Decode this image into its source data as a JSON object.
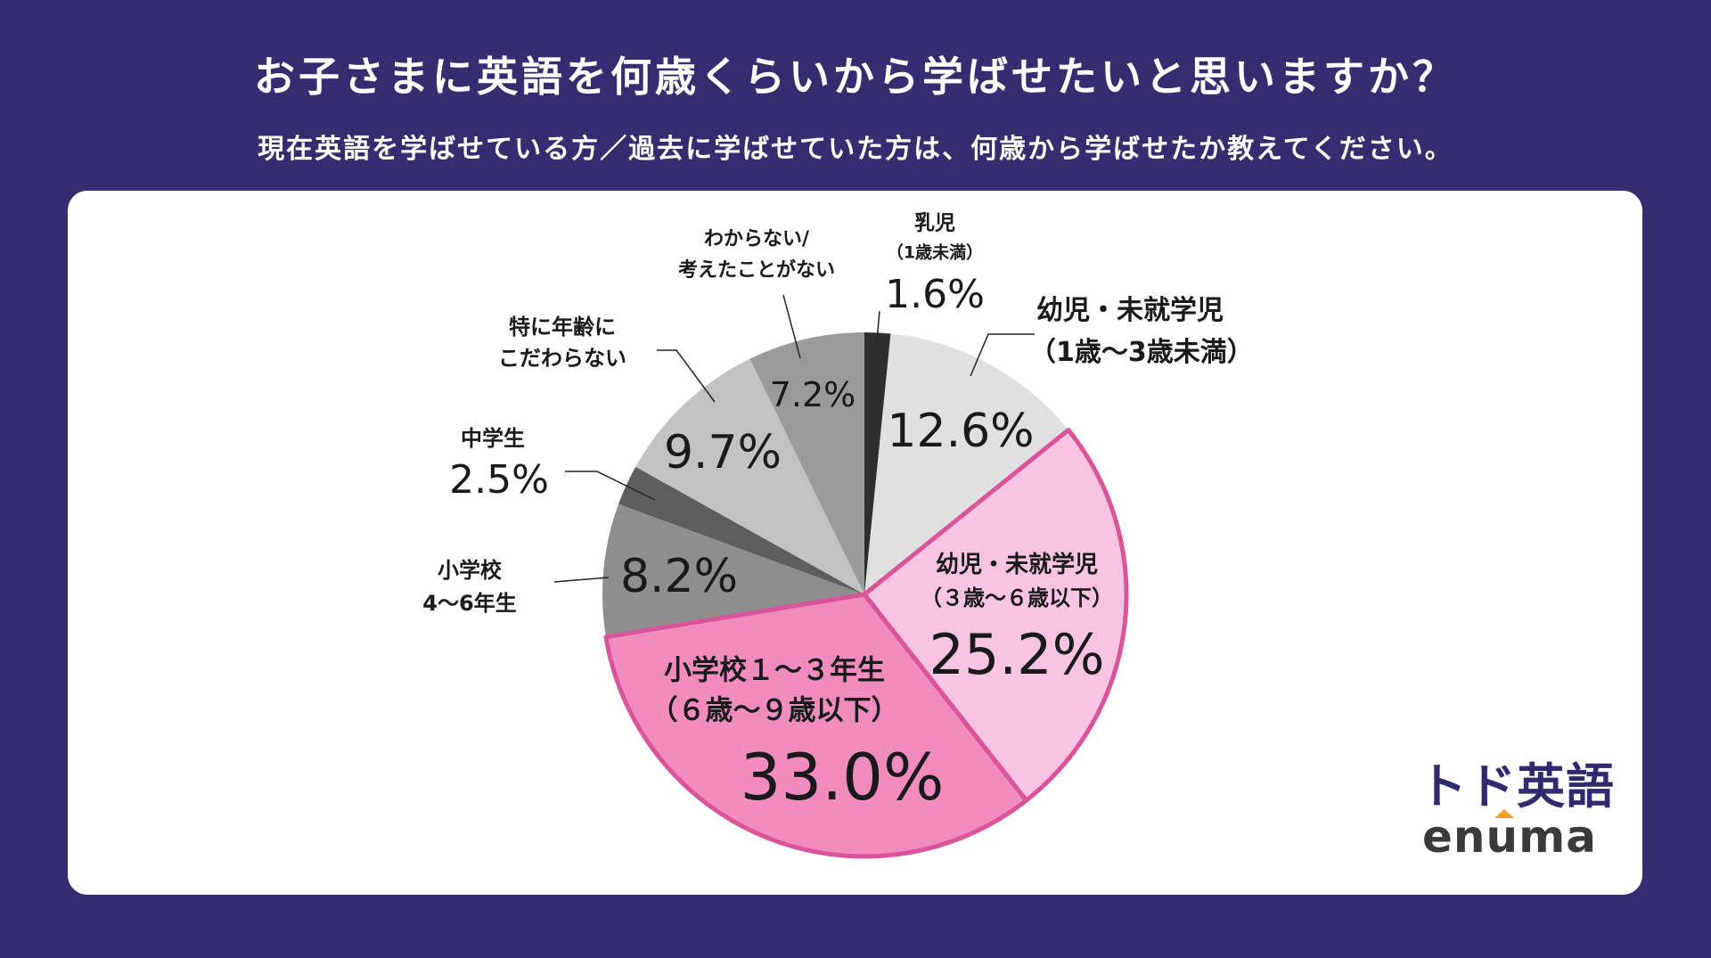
{
  "header": {
    "title": "お子さまに英語を何歳くらいから学ばせたいと思いますか？",
    "subtitle": "現在英語を学ばせている方／過去に学ばせていた方は、何歳から学ばせたか教えてください。"
  },
  "chart_data": {
    "type": "pie",
    "start": "top",
    "direction": "clockwise",
    "slices": [
      {
        "label": "乳児（1歳未満）",
        "line1": "乳児",
        "line2": "（1歳未満）",
        "value": 1.6,
        "display": "1.6%",
        "color": "#2e2e2e"
      },
      {
        "label": "幼児・未就学児（1歳～3歳未満）",
        "line1": "幼児・未就学児",
        "line2": "（1歳～3歳未満）",
        "value": 12.6,
        "display": "12.6%",
        "color": "#e0e0e0"
      },
      {
        "label": "幼児・未就学児（３歳～６歳以下）",
        "line1": "幼児・未就学児",
        "line2": "（３歳～６歳以下）",
        "value": 25.2,
        "display": "25.2%",
        "color": "#f9c4e1",
        "highlight": true
      },
      {
        "label": "小学校１～３年生（６歳～９歳以下）",
        "line1": "小学校１～３年生",
        "line2": "（６歳～９歳以下）",
        "value": 33.0,
        "display": "33.0%",
        "color": "#f28cbf",
        "highlight": true
      },
      {
        "label": "小学校4～6年生",
        "line1": "小学校",
        "line2": "4～6年生",
        "value": 8.2,
        "display": "8.2%",
        "color": "#8e8e8e"
      },
      {
        "label": "中学生",
        "line1": "中学生",
        "value": 2.5,
        "display": "2.5%",
        "color": "#5e5e5e"
      },
      {
        "label": "特に年齢にこだわらない",
        "line1": "特に年齢に",
        "line2": "こだわらない",
        "value": 9.7,
        "display": "9.7%",
        "color": "#c2c2c2"
      },
      {
        "label": "わからない/考えたことがない",
        "line1": "わからない/",
        "line2": "考えたことがない",
        "value": 7.2,
        "display": "7.2%",
        "color": "#9a9a9a"
      }
    ],
    "highlight_stroke": "#d9549a"
  },
  "logo": {
    "brand": "トド英語",
    "company": "enuma"
  }
}
